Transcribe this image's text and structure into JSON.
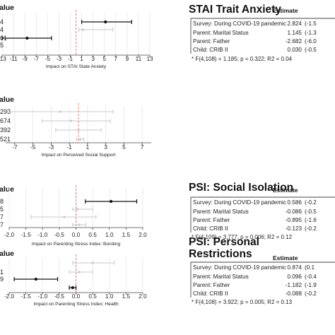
{
  "chart_data": [
    {
      "type": "forest",
      "xlabel": "Impact on STAI State Anxiety",
      "header_fragment": "alue",
      "row_labels": [
        "4",
        "4",
        "01",
        "5"
      ],
      "ticks": [
        "-13",
        "-11",
        "-9",
        "-7",
        "-5",
        "-3",
        "-1",
        "1",
        "3",
        "5",
        "7",
        "9",
        "11",
        "13"
      ],
      "xlim": [
        -13,
        13
      ],
      "ref_line": 0,
      "points": [
        {
          "est": 5.2,
          "lo": 1.0,
          "hi": 9.8,
          "bold": true
        },
        {
          "est": 1.2,
          "lo": 0.5,
          "hi": 6.5,
          "bold": false
        },
        {
          "est": -8.6,
          "lo": -13.0,
          "hi": -4.3,
          "bold": true
        },
        {
          "est": null,
          "lo": null,
          "hi": null,
          "bold": false
        }
      ]
    },
    {
      "type": "forest",
      "xlabel": "Impact on Perceived Social Support",
      "header_fragment": "alue",
      "row_labels": [
        "293",
        "674",
        "392",
        "521"
      ],
      "ticks": [
        "-7",
        "-5",
        "-3",
        "-1",
        "1",
        "3",
        "5",
        "7"
      ],
      "xlim": [
        -8,
        8
      ],
      "ref_line": 0,
      "points": [
        {
          "est": -2.0,
          "lo": -7.8,
          "hi": 3.8,
          "bold": false
        },
        {
          "est": -0.8,
          "lo": -4.0,
          "hi": 3.5,
          "bold": false
        },
        {
          "est": 0.0,
          "lo": -2.5,
          "hi": 2.5,
          "bold": false
        },
        {
          "est": 0.2,
          "lo": -0.2,
          "hi": 0.6,
          "bold": false
        }
      ]
    },
    {
      "type": "forest",
      "xlabel": "Impact on Parenting Stress Index: Bonding",
      "header_fragment": "alue",
      "row_labels": [
        "8",
        "5",
        "7",
        "7"
      ],
      "ticks": [
        "-2.0",
        "-1.5",
        "-1.0",
        "-0.5",
        "0.0",
        "0.5",
        "1.0",
        "1.5",
        "2.0"
      ],
      "xlim": [
        -2.0,
        2.0
      ],
      "ref_line": 0,
      "points": [
        {
          "est": 1.05,
          "lo": 0.28,
          "hi": 1.82,
          "bold": true
        },
        {
          "est": 0.05,
          "lo": -0.1,
          "hi": 0.5,
          "bold": false
        },
        {
          "est": -0.35,
          "lo": -1.35,
          "hi": 0.6,
          "bold": false
        },
        {
          "est": 0.1,
          "lo": -0.1,
          "hi": 0.3,
          "bold": false
        }
      ]
    },
    {
      "type": "forest",
      "xlabel": "Impact on Parenting Stress Index: Health",
      "header_fragment": "alue",
      "row_labels": [
        "",
        "1",
        "9",
        ""
      ],
      "ticks": [
        "-2.0",
        "-1.5",
        "-1.0",
        "-0.5",
        "0.0",
        "0.5",
        "1.0",
        "1.5",
        "2.0"
      ],
      "xlim": [
        -2.0,
        2.0
      ],
      "ref_line": 0,
      "points": [
        {
          "est": 0.5,
          "lo": -0.1,
          "hi": 1.15,
          "bold": false
        },
        {
          "est": 0.1,
          "lo": -0.2,
          "hi": 0.5,
          "bold": false
        },
        {
          "est": -1.2,
          "lo": -1.85,
          "hi": -0.55,
          "bold": true
        },
        {
          "est": -0.1,
          "lo": -0.2,
          "hi": 0.0,
          "bold": true
        }
      ]
    }
  ],
  "tables": [
    {
      "title": "STAI Trait Anxiety",
      "title2": "",
      "col_header": "Estimate",
      "rows": [
        {
          "label": "Survey: During COVID-19 pandemic",
          "estimate": "2.824",
          "ci": "(-1.5"
        },
        {
          "label": "Parent: Marital Status",
          "estimate": "1.145",
          "ci": "(-1.3"
        },
        {
          "label": "Parent: Father",
          "estimate": "-2.682",
          "ci": "(-6.0"
        },
        {
          "label": "Child: CRIB II",
          "estimate": "0.030",
          "ci": "(-0.5"
        }
      ],
      "footnote": "* F(4,108) = 1.185; p = 0.322; R2 = 0.04"
    },
    {
      "title": "PSI: Social Isolation",
      "title2": "",
      "col_header": "Estimate",
      "rows": [
        {
          "label": "Survey: During COVID-19 pandemic",
          "estimate": "0.586",
          "ci": "(-0.2"
        },
        {
          "label": "Parent: Marital Status",
          "estimate": "-0.086",
          "ci": "(-0.5"
        },
        {
          "label": "Parent: Father",
          "estimate": "-0.895",
          "ci": "(-1.6"
        },
        {
          "label": "Child: CRIB II",
          "estimate": "-0.123",
          "ci": "(-0.2"
        }
      ],
      "footnote": "* F(4,109) = 3.777; p = 0.006; R2 = 0.12"
    },
    {
      "title": "PSI: Personal",
      "title2": "Restrictions",
      "col_header": "Estimate",
      "rows": [
        {
          "label": "Survey: During COVID-19 pandemic",
          "estimate": "0.874",
          "ci": "(0.1"
        },
        {
          "label": "Parent: Marital Status",
          "estimate": "0.096",
          "ci": "(-0.4"
        },
        {
          "label": "Parent: Father",
          "estimate": "-1.182",
          "ci": "(-1.9"
        },
        {
          "label": "Child: CRIB II",
          "estimate": "-0.088",
          "ci": "(-0.2"
        }
      ],
      "footnote": "* F(4,108) = 3.922; p = 0.005; R2 = 0.13"
    }
  ]
}
